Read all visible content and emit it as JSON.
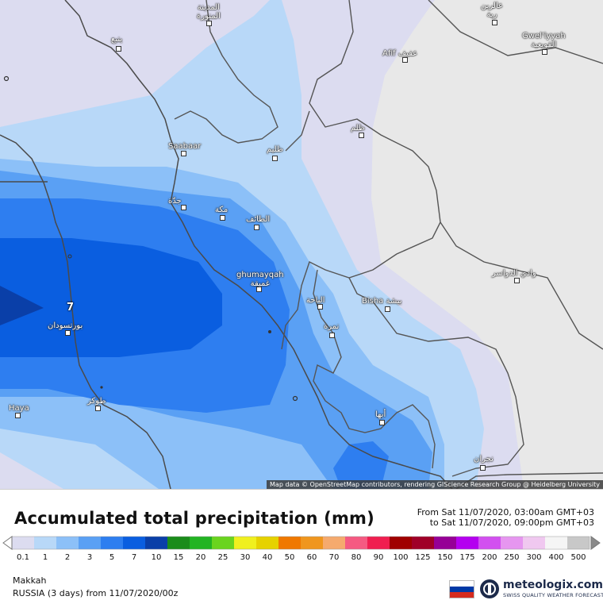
{
  "map": {
    "attribution": "Map data © OpenStreetMap contributors, rendering GIScience Research Group @ Heidelberg University",
    "marker_label": "7",
    "cities": [
      {
        "id": "madinah",
        "label": "المدينة\nالمنورة"
      },
      {
        "id": "yanbu",
        "label": "ينبع"
      },
      {
        "id": "afif",
        "label": "Afif عفيف"
      },
      {
        "id": "quwayiyah",
        "label": "Gwel'iyyah\nالقويعية"
      },
      {
        "id": "top-right-city",
        "label": "عالرين\nرية"
      },
      {
        "id": "zalim",
        "label": "ظلم"
      },
      {
        "id": "saabaar",
        "label": "Saabaar"
      },
      {
        "id": "rabigh",
        "label": "ظليم"
      },
      {
        "id": "jeddah",
        "label": "جدّة"
      },
      {
        "id": "makkah",
        "label": "مكة"
      },
      {
        "id": "taif",
        "label": "الطائف"
      },
      {
        "id": "ghumayqah",
        "label": "ghumayqah\nغميقة"
      },
      {
        "id": "baha",
        "label": "الباحة"
      },
      {
        "id": "bisha",
        "label": "Bisha بيشة"
      },
      {
        "id": "namas",
        "label": "نمرة"
      },
      {
        "id": "wadi-dawasir",
        "label": "وادي الدواسر"
      },
      {
        "id": "port-sudan",
        "label": "بورتسودان"
      },
      {
        "id": "tokar",
        "label": "طوكر"
      },
      {
        "id": "haya",
        "label": "Haya"
      },
      {
        "id": "abha",
        "label": "أبها"
      },
      {
        "id": "najran",
        "label": "نجران"
      }
    ]
  },
  "legend": {
    "title": "Accumulated total precipitation (mm)",
    "time_from": "From Sat 11/07/2020, 03:00am GMT+03",
    "time_to": "to Sat 11/07/2020, 09:00pm GMT+03",
    "ticks": [
      "0.1",
      "1",
      "2",
      "3",
      "5",
      "7",
      "10",
      "15",
      "20",
      "25",
      "30",
      "40",
      "50",
      "60",
      "70",
      "80",
      "90",
      "100",
      "125",
      "150",
      "175",
      "200",
      "250",
      "300",
      "400",
      "500"
    ],
    "colors": [
      "#dcdcf0",
      "#b8d8f8",
      "#8cc0f8",
      "#5aa0f4",
      "#2e7ef0",
      "#0a5ee0",
      "#0a3fa8",
      "#1a8c1a",
      "#22b422",
      "#6ad41e",
      "#f0f01e",
      "#e6d200",
      "#f07800",
      "#f0961e",
      "#f5aa6e",
      "#f55a82",
      "#f01e50",
      "#a00000",
      "#a00028",
      "#960096",
      "#b400f0",
      "#d250f0",
      "#e696f0",
      "#f0c8f0",
      "#f5f5f5",
      "#c8c8c8"
    ],
    "location": "Makkah",
    "model_info": "RUSSIA (3 days) from 11/07/2020/00z"
  },
  "brand": {
    "name": "meteologix.com",
    "tagline": "SWISS QUALITY WEATHER FORECASTING",
    "flag_colors": [
      "#ffffff",
      "#0039a6",
      "#d52b1e"
    ]
  }
}
